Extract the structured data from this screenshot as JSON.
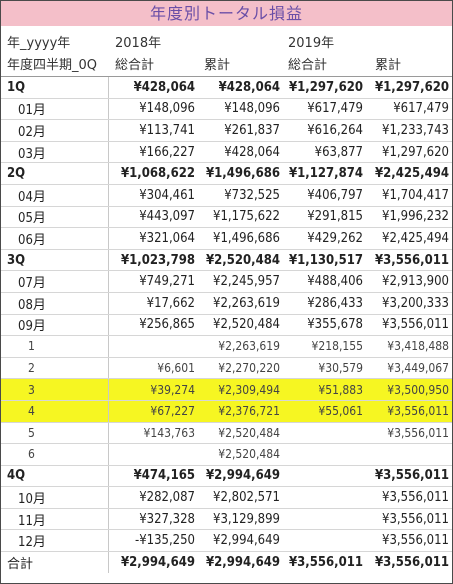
{
  "title": "年度別トータル損益",
  "header": {
    "row_field_1": "年_yyyy年",
    "row_field_2": "年度四半期_0Q",
    "year1": "2018年",
    "year2": "2019年",
    "col_total": "総合計",
    "col_cum": "累計"
  },
  "rows": [
    {
      "label": "1Q",
      "v": [
        "¥428,064",
        "¥428,064",
        "¥1,297,620",
        "¥1,297,620"
      ]
    },
    {
      "label": "01月",
      "v": [
        "¥148,096",
        "¥148,096",
        "¥617,479",
        "¥617,479"
      ]
    },
    {
      "label": "02月",
      "v": [
        "¥113,741",
        "¥261,837",
        "¥616,264",
        "¥1,233,743"
      ]
    },
    {
      "label": "03月",
      "v": [
        "¥166,227",
        "¥428,064",
        "¥63,877",
        "¥1,297,620"
      ]
    },
    {
      "label": "2Q",
      "v": [
        "¥1,068,622",
        "¥1,496,686",
        "¥1,127,874",
        "¥2,425,494"
      ]
    },
    {
      "label": "04月",
      "v": [
        "¥304,461",
        "¥732,525",
        "¥406,797",
        "¥1,704,417"
      ]
    },
    {
      "label": "05月",
      "v": [
        "¥443,097",
        "¥1,175,622",
        "¥291,815",
        "¥1,996,232"
      ]
    },
    {
      "label": "06月",
      "v": [
        "¥321,064",
        "¥1,496,686",
        "¥429,262",
        "¥2,425,494"
      ]
    },
    {
      "label": "3Q",
      "v": [
        "¥1,023,798",
        "¥2,520,484",
        "¥1,130,517",
        "¥3,556,011"
      ]
    },
    {
      "label": "07月",
      "v": [
        "¥749,271",
        "¥2,245,957",
        "¥488,406",
        "¥2,913,900"
      ]
    },
    {
      "label": "08月",
      "v": [
        "¥17,662",
        "¥2,263,619",
        "¥286,433",
        "¥3,200,333"
      ]
    },
    {
      "label": "09月",
      "v": [
        "¥256,865",
        "¥2,520,484",
        "¥355,678",
        "¥3,556,011"
      ]
    },
    {
      "label": "1",
      "v": [
        "",
        "¥2,263,619",
        "¥218,155",
        "¥3,418,488"
      ]
    },
    {
      "label": "2",
      "v": [
        "¥6,601",
        "¥2,270,220",
        "¥30,579",
        "¥3,449,067"
      ]
    },
    {
      "label": "3",
      "v": [
        "¥39,274",
        "¥2,309,494",
        "¥51,883",
        "¥3,500,950"
      ]
    },
    {
      "label": "4",
      "v": [
        "¥67,227",
        "¥2,376,721",
        "¥55,061",
        "¥3,556,011"
      ]
    },
    {
      "label": "5",
      "v": [
        "¥143,763",
        "¥2,520,484",
        "",
        "¥3,556,011"
      ]
    },
    {
      "label": "6",
      "v": [
        "",
        "¥2,520,484",
        "",
        ""
      ]
    },
    {
      "label": "4Q",
      "v": [
        "¥474,165",
        "¥2,994,649",
        "",
        "¥3,556,011"
      ]
    },
    {
      "label": "10月",
      "v": [
        "¥282,087",
        "¥2,802,571",
        "",
        "¥3,556,011"
      ]
    },
    {
      "label": "11月",
      "v": [
        "¥327,328",
        "¥3,129,899",
        "",
        "¥3,556,011"
      ]
    },
    {
      "label": "12月",
      "v": [
        "-¥135,250",
        "¥2,994,649",
        "",
        "¥3,556,011"
      ]
    },
    {
      "label": "合計",
      "v": [
        "¥2,994,649",
        "¥2,994,649",
        "¥3,556,011",
        "¥3,556,011"
      ]
    }
  ],
  "colors": {
    "title_bg": "#f4bfc9",
    "title_text": "#6b4fa7",
    "highlight": "#f6f622"
  }
}
